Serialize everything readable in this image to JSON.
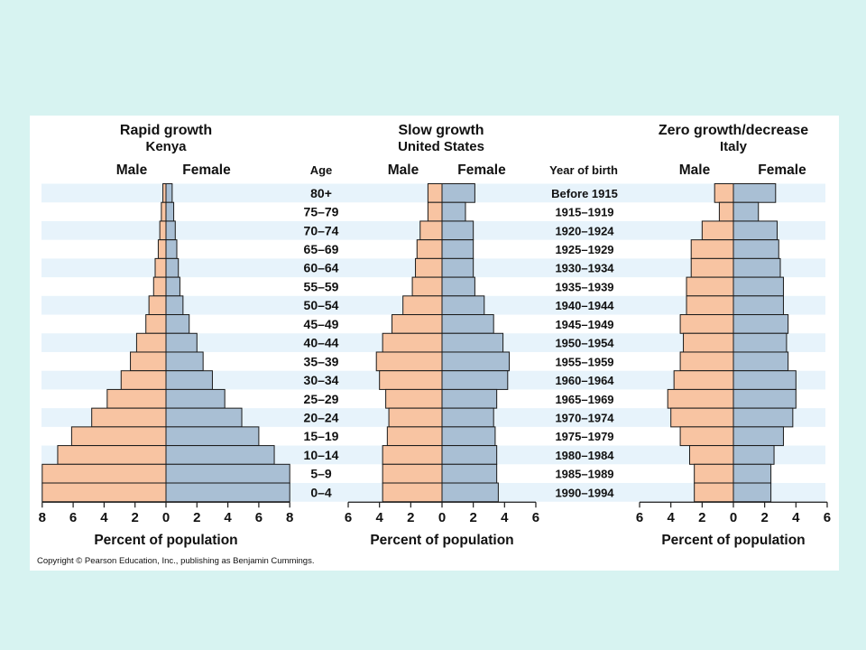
{
  "figure": {
    "copyright": "Copyright © Pearson Education, Inc., publishing as Benjamin Cummings.",
    "age_header": "Age",
    "year_header": "Year of birth",
    "male_label": "Male",
    "female_label": "Female",
    "age_groups": [
      "80+",
      "75–79",
      "70–74",
      "65–69",
      "60–64",
      "55–59",
      "50–54",
      "45–49",
      "40–44",
      "35–39",
      "30–34",
      "25–29",
      "20–24",
      "15–19",
      "10–14",
      "5–9",
      "0–4"
    ],
    "birth_years": [
      "Before 1915",
      "1915–1919",
      "1920–1924",
      "1925–1929",
      "1930–1934",
      "1935–1939",
      "1940–1944",
      "1945–1949",
      "1950–1954",
      "1955–1959",
      "1960–1964",
      "1965–1969",
      "1970–1974",
      "1975–1979",
      "1980–1984",
      "1985–1989",
      "1990–1994"
    ],
    "colors": {
      "page_background": "#d7f3f1",
      "card": "#ffffff",
      "row_band": "#e7f3fb",
      "male_bar": "#f8c4a2",
      "female_bar": "#a9bfd4",
      "outline": "#1a1a1a"
    }
  },
  "chart_data": [
    {
      "type": "bar",
      "orientation": "horizontal",
      "layout": "population-pyramid",
      "title": "Rapid growth",
      "subtitle": "Kenya",
      "xlabel": "Percent of population",
      "ylabel": "Age",
      "xlim": [
        0,
        8
      ],
      "x_ticks": [
        "8",
        "6",
        "4",
        "2",
        "0",
        "2",
        "4",
        "6",
        "8"
      ],
      "categories": [
        "80+",
        "75–79",
        "70–74",
        "65–69",
        "60–64",
        "55–59",
        "50–54",
        "45–49",
        "40–44",
        "35–39",
        "30–34",
        "25–29",
        "20–24",
        "15–19",
        "10–14",
        "5–9",
        "0–4"
      ],
      "series": [
        {
          "name": "Male",
          "values": [
            0.2,
            0.3,
            0.4,
            0.5,
            0.7,
            0.8,
            1.1,
            1.3,
            1.9,
            2.3,
            2.9,
            3.8,
            4.8,
            6.1,
            7.0,
            8.0,
            8.0
          ]
        },
        {
          "name": "Female",
          "values": [
            0.4,
            0.5,
            0.6,
            0.7,
            0.8,
            0.9,
            1.1,
            1.5,
            2.0,
            2.4,
            3.0,
            3.8,
            4.9,
            6.0,
            7.0,
            8.0,
            8.0
          ]
        }
      ]
    },
    {
      "type": "bar",
      "orientation": "horizontal",
      "layout": "population-pyramid",
      "title": "Slow growth",
      "subtitle": "United States",
      "xlabel": "Percent of population",
      "ylabel": "Year of birth",
      "xlim": [
        0,
        6
      ],
      "x_ticks": [
        "6",
        "4",
        "2",
        "0",
        "2",
        "4",
        "6"
      ],
      "categories": [
        "80+",
        "75–79",
        "70–74",
        "65–69",
        "60–64",
        "55–59",
        "50–54",
        "45–49",
        "40–44",
        "35–39",
        "30–34",
        "25–29",
        "20–24",
        "15–19",
        "10–14",
        "5–9",
        "0–4"
      ],
      "series": [
        {
          "name": "Male",
          "values": [
            0.9,
            0.9,
            1.4,
            1.6,
            1.7,
            1.9,
            2.5,
            3.2,
            3.8,
            4.2,
            4.0,
            3.6,
            3.4,
            3.5,
            3.8,
            3.8,
            3.8
          ]
        },
        {
          "name": "Female",
          "values": [
            2.1,
            1.5,
            2.0,
            2.0,
            2.0,
            2.1,
            2.7,
            3.3,
            3.9,
            4.3,
            4.2,
            3.5,
            3.3,
            3.4,
            3.5,
            3.5,
            3.6
          ]
        }
      ]
    },
    {
      "type": "bar",
      "orientation": "horizontal",
      "layout": "population-pyramid",
      "title": "Zero growth/decrease",
      "subtitle": "Italy",
      "xlabel": "Percent of population",
      "ylabel": "",
      "xlim": [
        0,
        6
      ],
      "x_ticks": [
        "6",
        "4",
        "2",
        "0",
        "2",
        "4",
        "6"
      ],
      "categories": [
        "80+",
        "75–79",
        "70–74",
        "65–69",
        "60–64",
        "55–59",
        "50–54",
        "45–49",
        "40–44",
        "35–39",
        "30–34",
        "25–29",
        "20–24",
        "15–19",
        "10–14",
        "5–9",
        "0–4"
      ],
      "series": [
        {
          "name": "Male",
          "values": [
            1.2,
            0.9,
            2.0,
            2.7,
            2.7,
            3.0,
            3.0,
            3.4,
            3.2,
            3.4,
            3.8,
            4.2,
            4.0,
            3.4,
            2.8,
            2.5,
            2.5
          ]
        },
        {
          "name": "Female",
          "values": [
            2.7,
            1.6,
            2.8,
            2.9,
            3.0,
            3.2,
            3.2,
            3.5,
            3.4,
            3.5,
            4.0,
            4.0,
            3.8,
            3.2,
            2.6,
            2.4,
            2.4
          ]
        }
      ]
    }
  ]
}
